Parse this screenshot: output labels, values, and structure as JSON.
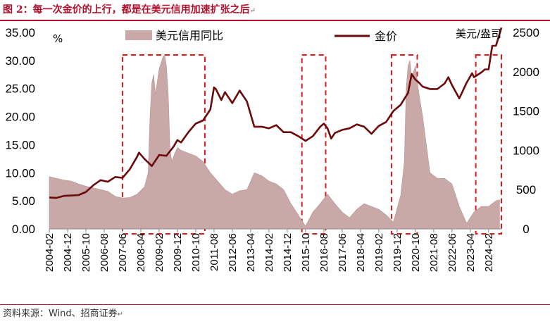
{
  "figure": {
    "title": "图 2：每一次金价的上行，都是在美元信用加速扩张之后",
    "title_mark": "↵",
    "source": "资料来源：Wind、招商证券",
    "source_mark": "↵"
  },
  "chart_data": {
    "type": "area+line",
    "title": "",
    "legend_position": "top",
    "series": [
      {
        "name": "美元信用同比",
        "type": "area",
        "axis": "left",
        "color": "#c9a8a8",
        "points": [
          [
            "2004-02",
            9.3
          ],
          [
            "2004-06",
            9.0
          ],
          [
            "2004-10",
            8.7
          ],
          [
            "2005-02",
            8.5
          ],
          [
            "2005-06",
            8.0
          ],
          [
            "2005-10",
            7.6
          ],
          [
            "2006-02",
            7.3
          ],
          [
            "2006-06",
            7.0
          ],
          [
            "2006-10",
            6.7
          ],
          [
            "2007-02",
            5.8
          ],
          [
            "2007-06",
            5.5
          ],
          [
            "2007-10",
            5.6
          ],
          [
            "2008-02",
            6.2
          ],
          [
            "2008-06",
            7.5
          ],
          [
            "2008-08",
            10.0
          ],
          [
            "2008-09",
            20.0
          ],
          [
            "2008-10",
            26.0
          ],
          [
            "2008-11",
            27.5
          ],
          [
            "2008-12",
            24.0
          ],
          [
            "2009-02",
            28.5
          ],
          [
            "2009-04",
            30.5
          ],
          [
            "2009-05",
            31.0
          ],
          [
            "2009-06",
            29.0
          ],
          [
            "2009-07",
            24.0
          ],
          [
            "2009-08",
            14.0
          ],
          [
            "2009-09",
            12.0
          ],
          [
            "2009-10",
            13.0
          ],
          [
            "2009-12",
            14.5
          ],
          [
            "2010-02",
            14.0
          ],
          [
            "2010-06",
            13.5
          ],
          [
            "2010-10",
            13.0
          ],
          [
            "2011-02",
            12.0
          ],
          [
            "2011-06",
            10.0
          ],
          [
            "2011-10",
            8.5
          ],
          [
            "2012-02",
            7.0
          ],
          [
            "2012-06",
            6.2
          ],
          [
            "2012-10",
            6.8
          ],
          [
            "2013-02",
            7.0
          ],
          [
            "2013-06",
            10.0
          ],
          [
            "2013-10",
            9.5
          ],
          [
            "2014-02",
            8.5
          ],
          [
            "2014-06",
            8.0
          ],
          [
            "2014-10",
            7.0
          ],
          [
            "2015-02",
            4.5
          ],
          [
            "2015-06",
            2.5
          ],
          [
            "2015-10",
            0.5
          ],
          [
            "2016-02",
            3.0
          ],
          [
            "2016-06",
            4.5
          ],
          [
            "2016-10",
            6.2
          ],
          [
            "2017-02",
            4.5
          ],
          [
            "2017-06",
            3.0
          ],
          [
            "2017-10",
            2.0
          ],
          [
            "2018-02",
            3.5
          ],
          [
            "2018-06",
            4.5
          ],
          [
            "2018-10",
            4.0
          ],
          [
            "2019-02",
            3.5
          ],
          [
            "2019-06",
            2.5
          ],
          [
            "2019-10",
            1.2
          ],
          [
            "2020-02",
            6.0
          ],
          [
            "2020-04",
            12.0
          ],
          [
            "2020-05",
            25.0
          ],
          [
            "2020-06",
            29.0
          ],
          [
            "2020-07",
            30.0
          ],
          [
            "2020-08",
            27.0
          ],
          [
            "2020-10",
            29.0
          ],
          [
            "2020-12",
            24.0
          ],
          [
            "2021-02",
            20.0
          ],
          [
            "2021-06",
            10.0
          ],
          [
            "2021-10",
            9.0
          ],
          [
            "2022-02",
            9.0
          ],
          [
            "2022-06",
            8.0
          ],
          [
            "2022-10",
            4.0
          ],
          [
            "2023-02",
            1.0
          ],
          [
            "2023-06",
            3.0
          ],
          [
            "2023-10",
            4.0
          ],
          [
            "2024-02",
            4.0
          ],
          [
            "2024-06",
            5.0
          ],
          [
            "2024-08",
            5.2
          ]
        ]
      },
      {
        "name": "金价",
        "type": "line",
        "axis": "right",
        "color": "#6b0a0a",
        "points": [
          [
            "2004-02",
            400
          ],
          [
            "2004-06",
            395
          ],
          [
            "2004-10",
            420
          ],
          [
            "2005-02",
            425
          ],
          [
            "2005-06",
            430
          ],
          [
            "2005-10",
            470
          ],
          [
            "2006-02",
            555
          ],
          [
            "2006-06",
            620
          ],
          [
            "2006-10",
            600
          ],
          [
            "2007-02",
            660
          ],
          [
            "2007-06",
            650
          ],
          [
            "2007-10",
            760
          ],
          [
            "2008-02",
            920
          ],
          [
            "2008-03",
            970
          ],
          [
            "2008-06",
            890
          ],
          [
            "2008-10",
            800
          ],
          [
            "2009-02",
            940
          ],
          [
            "2009-06",
            930
          ],
          [
            "2009-10",
            1050
          ],
          [
            "2009-12",
            1130
          ],
          [
            "2010-02",
            1100
          ],
          [
            "2010-06",
            1230
          ],
          [
            "2010-10",
            1340
          ],
          [
            "2011-02",
            1380
          ],
          [
            "2011-06",
            1520
          ],
          [
            "2011-08",
            1800
          ],
          [
            "2011-09",
            1780
          ],
          [
            "2011-12",
            1640
          ],
          [
            "2012-02",
            1740
          ],
          [
            "2012-06",
            1600
          ],
          [
            "2012-10",
            1760
          ],
          [
            "2013-02",
            1620
          ],
          [
            "2013-06",
            1300
          ],
          [
            "2013-10",
            1300
          ],
          [
            "2014-02",
            1280
          ],
          [
            "2014-06",
            1320
          ],
          [
            "2014-10",
            1230
          ],
          [
            "2015-02",
            1230
          ],
          [
            "2015-06",
            1180
          ],
          [
            "2015-10",
            1120
          ],
          [
            "2016-02",
            1180
          ],
          [
            "2016-06",
            1300
          ],
          [
            "2016-08",
            1340
          ],
          [
            "2016-10",
            1280
          ],
          [
            "2016-12",
            1150
          ],
          [
            "2017-02",
            1220
          ],
          [
            "2017-06",
            1260
          ],
          [
            "2017-10",
            1280
          ],
          [
            "2018-02",
            1330
          ],
          [
            "2018-06",
            1300
          ],
          [
            "2018-10",
            1210
          ],
          [
            "2019-02",
            1310
          ],
          [
            "2019-06",
            1360
          ],
          [
            "2019-10",
            1500
          ],
          [
            "2020-02",
            1580
          ],
          [
            "2020-06",
            1730
          ],
          [
            "2020-08",
            1970
          ],
          [
            "2020-10",
            1900
          ],
          [
            "2020-12",
            1860
          ],
          [
            "2021-02",
            1810
          ],
          [
            "2021-06",
            1780
          ],
          [
            "2021-10",
            1780
          ],
          [
            "2022-02",
            1850
          ],
          [
            "2022-04",
            1930
          ],
          [
            "2022-06",
            1830
          ],
          [
            "2022-10",
            1660
          ],
          [
            "2023-02",
            1860
          ],
          [
            "2023-05",
            1980
          ],
          [
            "2023-06",
            1930
          ],
          [
            "2023-10",
            1990
          ],
          [
            "2023-12",
            2030
          ],
          [
            "2024-02",
            2030
          ],
          [
            "2024-04",
            2330
          ],
          [
            "2024-06",
            2330
          ],
          [
            "2024-08",
            2480
          ],
          [
            "2024-09",
            2560
          ]
        ]
      }
    ],
    "left_axis": {
      "label": "%",
      "min": 0,
      "max": 35,
      "ticks": [
        "0.00",
        "5.00",
        "10.00",
        "15.00",
        "20.00",
        "25.00",
        "30.00",
        "35.00"
      ]
    },
    "right_axis": {
      "label": "美元/盎司",
      "min": 0,
      "max": 2500,
      "ticks": [
        "0",
        "500",
        "1000",
        "1500",
        "2000",
        "2500"
      ]
    },
    "x_axis": {
      "min": "2004-02",
      "max": "2024-09",
      "tick_labels": [
        "2004-02",
        "2004-12",
        "2005-10",
        "2006-08",
        "2007-06",
        "2008-04",
        "2009-02",
        "2009-12",
        "2010-10",
        "2011-08",
        "2012-06",
        "2013-04",
        "2014-02",
        "2014-12",
        "2015-10",
        "2016-08",
        "2017-06",
        "2018-04",
        "2019-02",
        "2019-12",
        "2020-10",
        "2021-08",
        "2022-06",
        "2023-04",
        "2024-02"
      ]
    },
    "highlight_periods": [
      {
        "start": "2007-06",
        "end": "2011-03"
      },
      {
        "start": "2015-08",
        "end": "2016-09"
      },
      {
        "start": "2019-09",
        "end": "2020-11"
      },
      {
        "start": "2023-07",
        "end": "2024-09"
      }
    ]
  }
}
